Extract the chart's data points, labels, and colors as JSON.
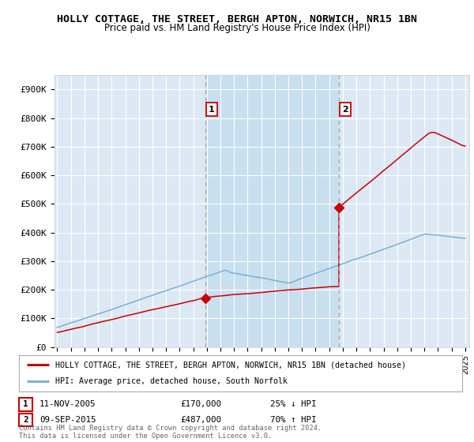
{
  "title": "HOLLY COTTAGE, THE STREET, BERGH APTON, NORWICH, NR15 1BN",
  "subtitle": "Price paid vs. HM Land Registry's House Price Index (HPI)",
  "title_fontsize": 9.5,
  "subtitle_fontsize": 8.5,
  "background_color": "#ffffff",
  "plot_bg_color": "#dce9f5",
  "highlight_color": "#c8dff0",
  "grid_color": "#ffffff",
  "ylabel_ticks": [
    "£0",
    "£100K",
    "£200K",
    "£300K",
    "£400K",
    "£500K",
    "£600K",
    "£700K",
    "£800K",
    "£900K"
  ],
  "ytick_values": [
    0,
    100000,
    200000,
    300000,
    400000,
    500000,
    600000,
    700000,
    800000,
    900000
  ],
  "ylim": [
    0,
    950000
  ],
  "xlim_start": 1994.8,
  "xlim_end": 2025.3,
  "red_line_color": "#cc0000",
  "blue_line_color": "#7ab0d4",
  "sale1_x": 2005.87,
  "sale1_y": 170000,
  "sale1_label": "1",
  "sale2_x": 2015.7,
  "sale2_y": 487000,
  "sale2_label": "2",
  "vline_color": "#aaaaaa",
  "vline_style": "--",
  "legend_line1": "HOLLY COTTAGE, THE STREET, BERGH APTON, NORWICH, NR15 1BN (detached house)",
  "legend_line2": "HPI: Average price, detached house, South Norfolk",
  "table_row1_num": "1",
  "table_row1_date": "11-NOV-2005",
  "table_row1_price": "£170,000",
  "table_row1_hpi": "25% ↓ HPI",
  "table_row2_num": "2",
  "table_row2_date": "09-SEP-2015",
  "table_row2_price": "£487,000",
  "table_row2_hpi": "70% ↑ HPI",
  "footer": "Contains HM Land Registry data © Crown copyright and database right 2024.\nThis data is licensed under the Open Government Licence v3.0.",
  "xtick_years": [
    1995,
    1996,
    1997,
    1998,
    1999,
    2000,
    2001,
    2002,
    2003,
    2004,
    2005,
    2006,
    2007,
    2008,
    2009,
    2010,
    2011,
    2012,
    2013,
    2014,
    2015,
    2016,
    2017,
    2018,
    2019,
    2020,
    2021,
    2022,
    2023,
    2024,
    2025
  ]
}
